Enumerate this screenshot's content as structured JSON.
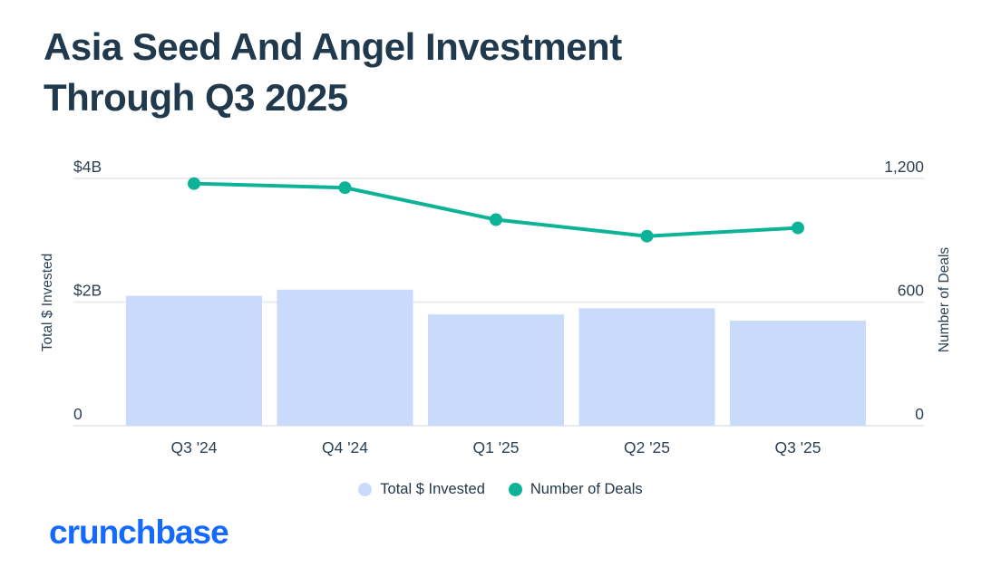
{
  "title": {
    "line1": "Asia Seed And Angel Investment",
    "line2": "Through Q3 2025"
  },
  "chart_data": {
    "type": "bar",
    "subtype": "combo bar+line, dual y-axis",
    "categories": [
      "Q3 '24",
      "Q4 '24",
      "Q1 '25",
      "Q2 '25",
      "Q3 '25"
    ],
    "series": [
      {
        "name": "Total $ Invested",
        "type": "bar",
        "axis": "left",
        "unit": "USD billions",
        "values": [
          2.1,
          2.2,
          1.8,
          1.9,
          1.7
        ]
      },
      {
        "name": "Number of Deals",
        "type": "line",
        "axis": "right",
        "unit": "deals",
        "values": [
          1175,
          1155,
          1000,
          920,
          960
        ]
      }
    ],
    "left_axis": {
      "label": "Total $ Invested",
      "max": 4,
      "ticks": [
        {
          "label": "$4B",
          "value": 4
        },
        {
          "label": "$2B",
          "value": 2
        },
        {
          "label": "0",
          "value": 0
        }
      ]
    },
    "right_axis": {
      "label": "Number of Deals",
      "max": 1200,
      "ticks": [
        {
          "label": "1,200",
          "value": 1200
        },
        {
          "label": "600",
          "value": 600
        },
        {
          "label": "0",
          "value": 0
        }
      ]
    },
    "grid": "horizontal gridlines at tick values",
    "legend": {
      "position": "bottom-center",
      "items": [
        {
          "label": "Total $ Invested",
          "color": "#c9dafb"
        },
        {
          "label": "Number of Deals",
          "color": "#0db396"
        }
      ]
    }
  },
  "colors": {
    "background": "#ffffff",
    "title_text": "#20394d",
    "axis_text": "#2e4256",
    "grid_line": "#e9ebee",
    "bar_fill": "#c9dafb",
    "line_stroke": "#0db396",
    "logo_blue": "#146aff"
  },
  "footer": {
    "logo_text": "crunchbase"
  }
}
